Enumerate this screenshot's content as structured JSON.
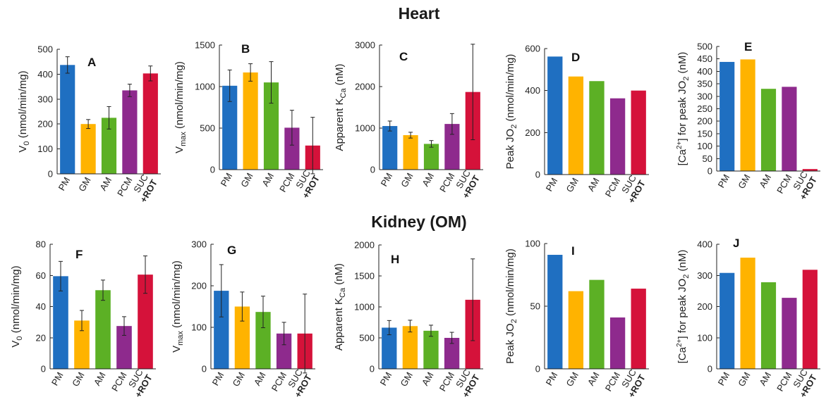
{
  "headings": {
    "heart": "Heart",
    "kidney": "Kidney (OM)"
  },
  "colors": {
    "PM": "#1f6fc1",
    "GM": "#ffb300",
    "AM": "#5cb025",
    "PCM": "#8e2a8d",
    "SUC": "#d5123a"
  },
  "chart_data": [
    {
      "id": "A",
      "type": "bar",
      "letter": "A",
      "tissue": "Heart",
      "categories": [
        "PM",
        "GM",
        "AM",
        "PCM",
        "SUC+ROT"
      ],
      "ylabel": "V0 (nmol/min/mg)",
      "ylabel_parts": {
        "main": "V",
        "sub": "0",
        "rest": " (nmol/min/mg)"
      },
      "ylim": [
        0,
        500
      ],
      "yticks": [
        0,
        100,
        200,
        300,
        400,
        500
      ],
      "values": [
        437,
        200,
        225,
        335,
        403
      ],
      "errors": [
        33,
        18,
        45,
        25,
        30
      ]
    },
    {
      "id": "B",
      "type": "bar",
      "letter": "B",
      "tissue": "Heart",
      "categories": [
        "PM",
        "GM",
        "AM",
        "PCM",
        "SUC+ROT"
      ],
      "ylabel": "Vmax (nmol/min/mg)",
      "ylabel_parts": {
        "main": "V",
        "sub": "max",
        "rest": "  (nmol/min/mg)"
      },
      "ylim": [
        0,
        1500
      ],
      "yticks": [
        0,
        500,
        1000,
        1500
      ],
      "values": [
        1010,
        1170,
        1050,
        505,
        290
      ],
      "errors": [
        190,
        105,
        250,
        210,
        340
      ]
    },
    {
      "id": "C",
      "type": "bar",
      "letter": "C",
      "tissue": "Heart",
      "categories": [
        "PM",
        "GM",
        "AM",
        "PCM",
        "SUC+ROT"
      ],
      "ylabel": "Apparent KCa (nM)",
      "ylabel_parts": {
        "main": "Apparent K",
        "sub": "Ca",
        "rest": " (nM)"
      },
      "ylim": [
        0,
        3000
      ],
      "yticks": [
        0,
        1000,
        2000,
        3000
      ],
      "values": [
        1050,
        830,
        620,
        1100,
        1870
      ],
      "errors": [
        120,
        70,
        80,
        250,
        1150
      ]
    },
    {
      "id": "D",
      "type": "bar",
      "letter": "D",
      "tissue": "Heart",
      "categories": [
        "PM",
        "GM",
        "AM",
        "PCM",
        "SUC+ROT"
      ],
      "ylabel": "Peak JO2 (nmol/min/mg)",
      "ylabel_parts": {
        "main": "Peak JO",
        "sub": "2",
        "rest": " (nmol/min/mg)"
      },
      "ylim": [
        0,
        600
      ],
      "yticks": [
        0,
        200,
        400,
        600
      ],
      "values": [
        562,
        467,
        445,
        363,
        400
      ],
      "errors": null
    },
    {
      "id": "E",
      "type": "bar",
      "letter": "E",
      "tissue": "Heart",
      "categories": [
        "PM",
        "GM",
        "AM",
        "PCM",
        "SUC+ROT"
      ],
      "ylabel": "[Ca2+] for peak JO2 (nM)",
      "ylabel_parts": {
        "main": "[Ca",
        "sup": "2+",
        "mid": "] for peak JO",
        "sub": "2",
        "rest": " (nM)"
      },
      "ylim": [
        0,
        500
      ],
      "yticks": [
        0,
        50,
        100,
        150,
        200,
        250,
        300,
        350,
        400,
        450,
        500
      ],
      "values": [
        438,
        448,
        330,
        338,
        8
      ],
      "errors": null
    },
    {
      "id": "F",
      "type": "bar",
      "letter": "F",
      "tissue": "Kidney (OM)",
      "categories": [
        "PM",
        "GM",
        "AM",
        "PCM",
        "SUC+ROT"
      ],
      "ylabel": "V0 (nmol/min/mg)",
      "ylabel_parts": {
        "main": "V",
        "sub": "0",
        "rest": " (nmol/min/mg)"
      },
      "ylim": [
        0,
        80
      ],
      "yticks": [
        0,
        20,
        40,
        60,
        80
      ],
      "values": [
        59.5,
        31,
        50.5,
        27.5,
        60.5
      ],
      "errors": [
        9.5,
        6.5,
        6.5,
        6,
        12
      ]
    },
    {
      "id": "G",
      "type": "bar",
      "letter": "G",
      "tissue": "Kidney (OM)",
      "categories": [
        "PM",
        "GM",
        "AM",
        "PCM",
        "SUC+ROT"
      ],
      "ylabel": "Vmax (nmol/min/mg)",
      "ylabel_parts": {
        "main": "V",
        "sub": "max",
        "rest": "  (nmol/min/mg)"
      },
      "ylim": [
        0,
        300
      ],
      "yticks": [
        0,
        100,
        200,
        300
      ],
      "values": [
        188,
        150,
        137,
        85,
        85
      ],
      "errors": [
        63,
        35,
        38,
        27,
        95
      ]
    },
    {
      "id": "H",
      "type": "bar",
      "letter": "H",
      "tissue": "Kidney (OM)",
      "categories": [
        "PM",
        "GM",
        "AM",
        "PCM",
        "SUC+ROT"
      ],
      "ylabel": "Apparent KCa (nM)",
      "ylabel_parts": {
        "main": "Apparent K",
        "sub": "Ca",
        "rest": " (nM)"
      },
      "ylim": [
        0,
        2000
      ],
      "yticks": [
        0,
        500,
        1000,
        1500,
        2000
      ],
      "values": [
        665,
        690,
        615,
        500,
        1115
      ],
      "errors": [
        115,
        95,
        90,
        90,
        660
      ]
    },
    {
      "id": "I",
      "type": "bar",
      "letter": "I",
      "tissue": "Kidney (OM)",
      "categories": [
        "PM",
        "GM",
        "AM",
        "PCM",
        "SUC+ROT"
      ],
      "ylabel": "Peak JO2 (nmol/min/mg)",
      "ylabel_parts": {
        "main": "Peak JO",
        "sub": "2",
        "rest": " (nmol/min/mg)"
      },
      "ylim": [
        0,
        100
      ],
      "yticks": [
        0,
        50,
        100
      ],
      "values": [
        91,
        62,
        71,
        41,
        64
      ],
      "errors": null
    },
    {
      "id": "J",
      "type": "bar",
      "letter": "J",
      "tissue": "Kidney (OM)",
      "categories": [
        "PM",
        "GM",
        "AM",
        "PCM",
        "SUC+ROT"
      ],
      "ylabel": "[Ca2+] for peak JO2 (nM)",
      "ylabel_parts": {
        "main": "[Ca",
        "sup": "2+",
        "mid": "] for peak JO",
        "sub": "2",
        "rest": " (nM)"
      },
      "ylim": [
        0,
        400
      ],
      "yticks": [
        0,
        100,
        200,
        300,
        400
      ],
      "values": [
        308,
        357,
        278,
        228,
        318
      ],
      "errors": null
    }
  ]
}
